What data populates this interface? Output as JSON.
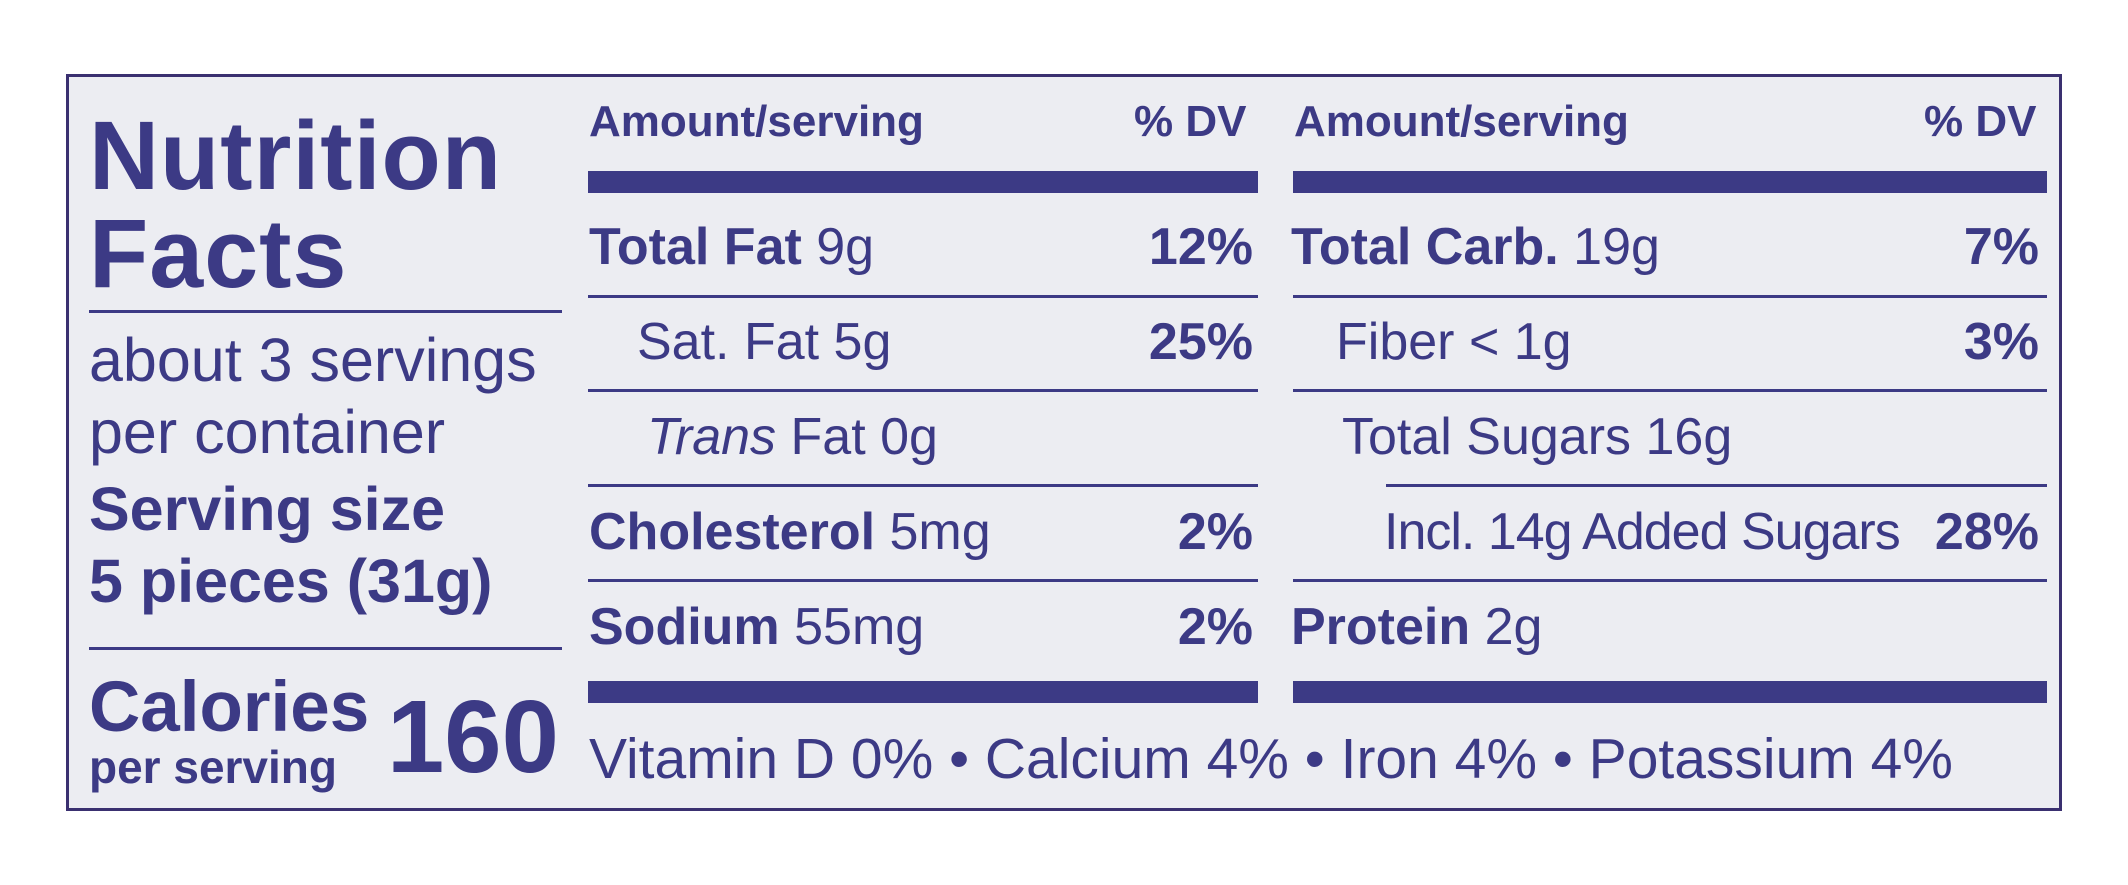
{
  "panel": {
    "title_line1": "Nutrition",
    "title_line2": "Facts",
    "servings_line1": "about 3 servings",
    "servings_line2": "per container",
    "serving_size_label": "Serving size",
    "serving_size_value": "5 pieces (31g)",
    "calories_label": "Calories",
    "calories_sub": "per serving",
    "calories_value": "160"
  },
  "headers": {
    "amount": "Amount/serving",
    "dv": "% DV"
  },
  "left_rows": [
    {
      "name": "Total Fat",
      "amount": "9g",
      "dv": "12%"
    },
    {
      "name": "Sat. Fat",
      "amount": "5g",
      "dv": "25%"
    },
    {
      "name_italic": "Trans",
      "name": "Fat",
      "amount": "0g",
      "dv": ""
    },
    {
      "name": "Cholesterol",
      "amount": "5mg",
      "dv": "2%"
    },
    {
      "name": "Sodium",
      "amount": "55mg",
      "dv": "2%"
    }
  ],
  "right_rows": [
    {
      "name": "Total Carb.",
      "amount": "19g",
      "dv": "7%"
    },
    {
      "name": "Fiber",
      "amount": "< 1g",
      "dv": "3%"
    },
    {
      "name": "Total Sugars",
      "amount": "16g",
      "dv": ""
    },
    {
      "name": "Incl. 14g Added Sugars",
      "amount": "",
      "dv": "28%"
    },
    {
      "name": "Protein",
      "amount": "2g",
      "dv": ""
    }
  ],
  "footer": {
    "vitamins": "Vitamin D 0% • Calcium 4% • Iron 4% • Potassium 4%"
  },
  "colors": {
    "ink": "#3c3a85",
    "background": "#ecedf2",
    "border": "#3a3070"
  }
}
